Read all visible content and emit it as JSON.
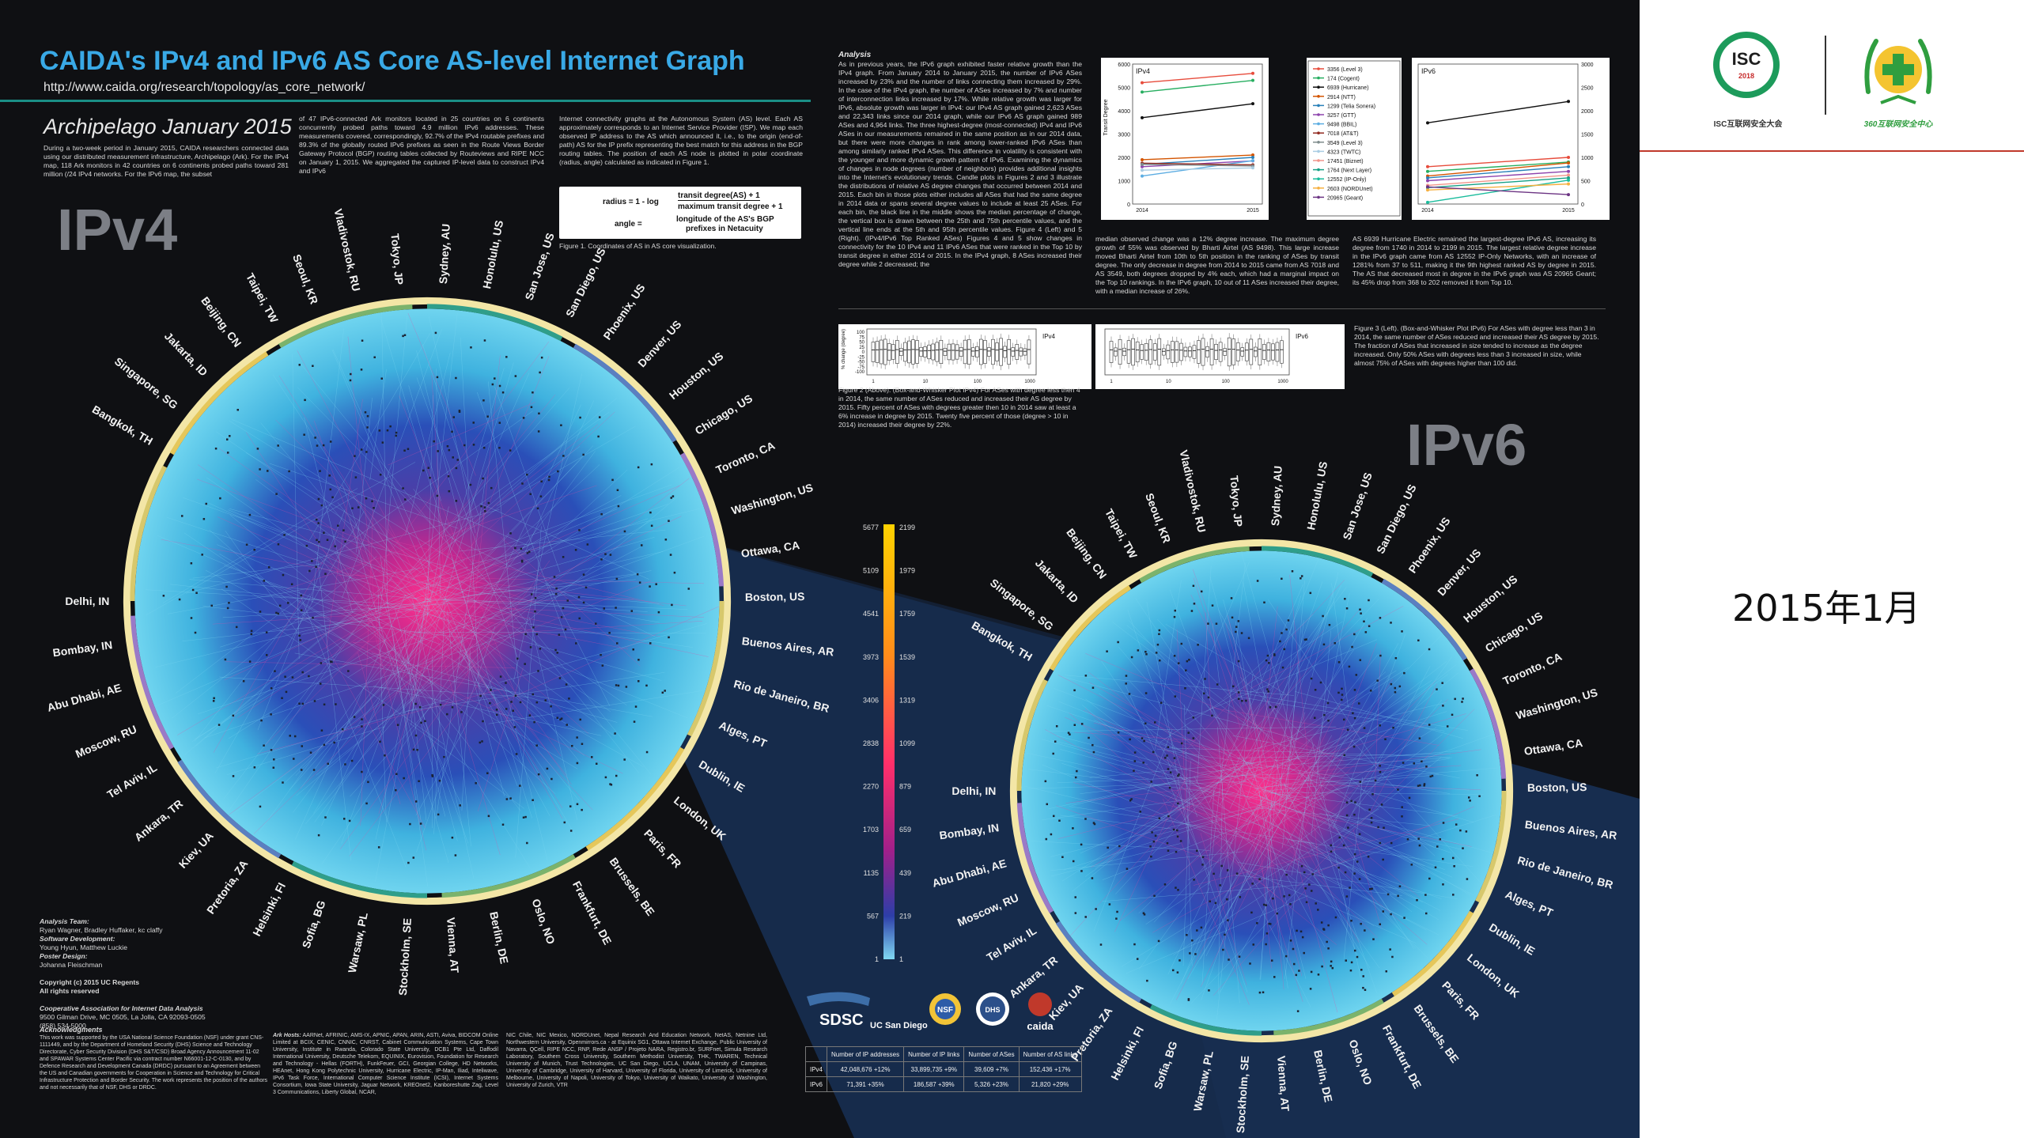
{
  "poster": {
    "title": "CAIDA's IPv4 and IPv6 AS Core AS-level Internet Graph",
    "url": "http://www.caida.org/research/topology/as_core_network/",
    "subtitle": "Archipelago January 2015",
    "intro_text": "During a two-week period in January 2015, CAIDA researchers connected data using our distributed measurement infrastructure, Archipelago (Ark). For the IPv4 map, 118 Ark monitors in 42 countries on 6 continents probed paths toward 281 million (/24 IPv4 networks. For the IPv6 map, the subset",
    "col2_text": "of 47 IPv6-connected Ark monitors located in 25 countries on 6 continents concurrently probed paths toward 4.9 million IPv6 addresses. These measurements covered, correspondingly, 92.7% of the IPv4 routable prefixes and 89.3% of the globally routed IPv6 prefixes as seen in the Route Views Border Gateway Protocol (BGP) routing tables collected by Routeviews and RIPE NCC on January 1, 2015. We aggregated the captured IP-level data to construct IPv4 and IPv6",
    "col3_text": "Internet connectivity graphs at the Autonomous System (AS) level. Each AS approximately corresponds to an Internet Service Provider (ISP). We map each observed IP address to the AS which announced it, i.e., to the origin (end-of-path) AS for the IP prefix representing the best match for this address in the BGP routing tables. The position of each AS node is plotted in polar coordinate (radius, angle) calculated as indicated in Figure 1.",
    "analysis_heading": "Analysis",
    "analysis_text": "As in previous years, the IPv6 graph exhibited faster relative growth than the IPv4 graph. From January 2014 to January 2015, the number of IPv6 ASes increased by 23% and the number of links connecting them increased by 29%. In the case of the IPv4 graph, the number of ASes increased by 7% and number of interconnection links increased by 17%. While relative growth was larger for IPv6, absolute growth was larger in IPv4: our IPv4 AS graph gained 2,623 ASes and 22,343 links since our 2014 graph, while our IPv6 AS graph gained 989 ASes and 4,964 links. The three highest-degree (most-connected) IPv4 and IPv6 ASes in our measurements remained in the same position as in our 2014 data, but there were more changes in rank among lower-ranked IPv6 ASes than among similarly ranked IPv4 ASes. This difference in volatility is consistent with the younger and more dynamic growth pattern of IPv6. Examining the dynamics of changes in node degrees (number of neighbors) provides additional insights into the Internet's evolutionary trends. Candle plots in Figures 2 and 3 illustrate the distributions of relative AS degree changes that occurred between 2014 and 2015. Each bin in those plots either includes all ASes that had the same degree in 2014 data or spans several degree values to include at least 25 ASes. For each bin, the black line in the middle shows the median percentage of change, the vertical box is drawn between the 25th and 75th percentile values, and the vertical line ends at the 5th and 95th percentile values. Figure 4 (Left) and 5 (Right). (IPv4/IPv6 Top Ranked ASes) Figures 4 and 5 show changes in connectivity for the 10 IPv4 and 11 IPv6 ASes that were ranked in the Top 10 by transit degree in either 2014 or 2015. In the IPv4 graph, 8 ASes increased their degree while 2 decreased; the",
    "col_mid_text": "median observed change was a 12% degree increase. The maximum degree growth of 55% was observed by Bharti Airtel (AS 9498). This large increase moved Bharti Airtel from 10th to 5th position in the ranking of ASes by transit degree. The only decrease in degree from 2014 to 2015 came from AS 7018 and AS 3549, both degrees dropped by 4% each, which had a marginal impact on the Top 10 rankings. In the IPv6 graph, 10 out of 11 ASes increased their degree, with a median increase of 26%.",
    "col_right_text": "AS 6939 Hurricane Electric remained the largest-degree IPv6 AS, increasing its degree from 1740 in 2014 to 2199 in 2015. The largest relative degree increase in the IPv6 graph came from AS 12552 IP-Only Networks, with an increase of 1281% from 37 to 511, making it the 9th highest ranked AS by degree in 2015. The AS that decreased most in degree in the IPv6 graph was AS 20965 Geant; its 45% drop from 368 to 202 removed it from Top 10.",
    "fig1_caption": "Figure 1. Coordinates of AS in AS core visualization.",
    "fig2_caption": "Figure 2 (Above). (Box-and-Whisker Plot IPv4) For ASes with degree less then 4 in 2014, the same number of ASes reduced and increased their AS degree by 2015. Fifty percent of ASes with degrees greater then 10 in 2014 saw at least a 6% increase in degree by 2015. Twenty five percent of those (degree > 10 in 2014) increased their degree by 22%.",
    "fig3_caption": "Figure 3 (Left). (Box-and-Whisker Plot IPv6) For ASes with degree less than 3 in 2014, the same number of ASes reduced and increased their AS degree by 2015. The fraction of ASes that increased in size tended to increase as the degree increased. Only 50% ASes with degrees less than 3 increased in size, while almost 75% of ASes with degrees higher than 100 did.",
    "formula_radius": "radius = 1 - log",
    "formula_num": "transit degree(AS) + 1",
    "formula_den": "maximum transit degree + 1",
    "formula_angle": "angle =",
    "formula_angle_expr1": "longitude of the AS's BGP",
    "formula_angle_expr2": "prefixes in Netacuity",
    "ipv4_label": "IPv4",
    "ipv6_label": "IPv6",
    "analysis_team_heading": "Analysis Team:",
    "analysis_team": "Ryan Wagner, Bradley Huffaker, kc claffy",
    "software_heading": "Software Development:",
    "software_team": "Young Hyun, Matthew Luckie",
    "poster_design_heading": "Poster Design:",
    "poster_design": "Johanna Fleischman",
    "copyright": "Copyright (c) 2015 UC Regents",
    "rights": "All rights reserved",
    "caida_name": "Cooperative Association for Internet Data Analysis",
    "caida_addr": "9500 Gilman Drive, MC 0505, La Jolla, CA 92093-0505",
    "caida_phone": "(858) 534-5000",
    "ack_heading": "Acknowledgments",
    "ack_text": "This work was supported by the USA National Science Foundation (NSF) under grant CNS-1111449, and by the Department of Homeland Security (DHS) Science and Technology Directorate, Cyber Security Division (DHS S&T/CSD) Broad Agency Announcement 11-02 and SPAWAR Systems Center Pacific via contract number N66001-12-C-0130, and by Defence Research and Development Canada (DRDC) pursuant to an Agreement between the US and Canadian governments for Cooperation in Science and Technology for Critical Infrastructure Protection and Border Security. The work represents the position of the authors and not necessarily that of NSF, DHS or DRDC.",
    "ark_hosts_heading": "Ark Hosts:",
    "ark_hosts_text": "AARNet, AFRINIC, AMS-IX, APNIC, APAN, ARIN, ASTI, Aviva, BIDCOM Online Limited at BCIX, CENIC, CNNIC, CNRST, Cabinet Communication Systems, Cape Town University, Institute in Rwanda, Colorado State University, DCB1 Pte Ltd, Daffodil International University, Deutsche Telekom, EQUINIX, Eurovision, Foundation for Research and Technology - Hellas (FORTH), FunkFeuer, GCI, Georgian College, HD Networks, HEAnet, Hong Kong Polytechnic University, Hurricane Electric, IP-Man, Iliad, Inteliwave, IPv6 Task Force, International Computer Science Institute (ICSI), Internet Systems Consortium, Iowa State University, Jaguar Network, KREOnet2, Kanboreshutte Zag, Level 3 Communications, Liberty Global, NCAR,",
    "ark_hosts_text2": "NIC Chile, NIC Mexico, NORDUnet, Nepal Research And Education Network, NetAS, Netnine Ltd, Northwestern University, Openmirrors.ca - at Equinix SG1, Ottawa Internet Exchange, Public University of Navarra, QCell, RIPE NCC, RNP, Rede ANSP / Projeto NARA, Registro.br, SURFnet, Simula Research Laboratory, Southern Cross University, Southern Methodist University, THK, TWAREN, Technical University of Munich, Trust Technologies, UC San Diego, UCLA, UNAM, University of Campinas, University of Cambridge, University of Harvard, University of Florida, University of Limerick, University of Melbourne, University of Napoli, University of Tokyo, University of Waikato, University of Washington, University of Zurich, VTR",
    "ipv4_cities": [
      "Bangkok, TH",
      "Singapore, SG",
      "Jakarta, ID",
      "Beijing, CN",
      "Taipei, TW",
      "Seoul, KR",
      "Vladivostok, RU",
      "Tokyo, JP",
      "Sydney, AU",
      "Honolulu, US",
      "San Jose, US",
      "San Diego, US",
      "Phoenix, US",
      "Denver, US",
      "Houston, US",
      "Chicago, US",
      "Toronto, CA",
      "Washington, US",
      "Ottawa, CA",
      "Boston, US",
      "Buenos Aires, AR",
      "Rio de Janeiro, BR",
      "Alges, PT",
      "Dublin, IE",
      "London, UK",
      "Paris, FR",
      "Brussels, BE",
      "Frankfurt, DE",
      "Oslo, NO",
      "Berlin, DE",
      "Vienna, AT",
      "Stockholm, SE",
      "Warsaw, PL",
      "Sofia, BG",
      "Helsinki, FI",
      "Pretoria, ZA",
      "Kiev, UA",
      "Ankara, TR",
      "Tel Aviv, IL",
      "Moscow, RU",
      "Abu Dhabi, AE",
      "Bombay, IN",
      "Delhi, IN"
    ],
    "ipv6_cities": [
      "Bangkok, TH",
      "Singapore, SG",
      "Jakarta, ID",
      "Beijing, CN",
      "Taipei, TW",
      "Seoul, KR",
      "Vladivostok, RU",
      "Tokyo, JP",
      "Sydney, AU",
      "Honolulu, US",
      "San Jose, US",
      "San Diego, US",
      "Phoenix, US",
      "Denver, US",
      "Houston, US",
      "Chicago, US",
      "Toronto, CA",
      "Washington, US",
      "Ottawa, CA",
      "Boston, US",
      "Buenos Aires, AR",
      "Rio de Janeiro, BR",
      "Alges, PT",
      "Dublin, IE",
      "London, UK",
      "Paris, FR",
      "Brussels, BE",
      "Frankfurt, DE",
      "Oslo, NO",
      "Berlin, DE",
      "Vienna, AT",
      "Stockholm, SE",
      "Warsaw, PL",
      "Sofia, BG",
      "Helsinki, FI",
      "Pretoria, ZA",
      "Kiev, UA",
      "Ankara, TR",
      "Tel Aviv, IL",
      "Moscow, RU",
      "Abu Dhabi, AE",
      "Bombay, IN",
      "Delhi, IN"
    ],
    "colorbar_left": [
      "5677",
      "5109",
      "4541",
      "3973",
      "3406",
      "2838",
      "2270",
      "1703",
      "1135",
      "567",
      "1"
    ],
    "colorbar_right": [
      "2199",
      "1979",
      "1759",
      "1539",
      "1319",
      "1099",
      "879",
      "659",
      "439",
      "219",
      "1"
    ],
    "table": {
      "headers": [
        "",
        "Number of IP addresses",
        "Number of IP links",
        "Number of ASes",
        "Number of AS links"
      ],
      "rows": [
        [
          "IPv4",
          "42,048,676 +12%",
          "33,899,735 +9%",
          "39,609 +7%",
          "152,436 +17%"
        ],
        [
          "IPv6",
          "71,391 +35%",
          "186,587 +39%",
          "5,326 +23%",
          "21,820 +29%"
        ]
      ]
    },
    "logos": [
      "SDSC",
      "UC San Diego",
      "NSF",
      "DHS",
      "caida"
    ]
  },
  "chart_data": [
    {
      "type": "line",
      "title": "IPv4",
      "ylabel": "Transit Degree",
      "x": [
        "2014",
        "2015"
      ],
      "ylim": [
        0,
        6000
      ],
      "yticks": [
        "0",
        "1000",
        "2000",
        "3000",
        "4000",
        "5000",
        "6000"
      ],
      "series": [
        {
          "name": "3356 (Level 3)",
          "values": [
            5200,
            5600
          ],
          "color": "#e74c3c"
        },
        {
          "name": "174 (Cogent)",
          "values": [
            4800,
            5300
          ],
          "color": "#27ae60"
        },
        {
          "name": "6939 (Hurricane)",
          "values": [
            3700,
            4300
          ],
          "color": "#111111"
        },
        {
          "name": "2914 (NTT)",
          "values": [
            1900,
            2100
          ],
          "color": "#d35400"
        },
        {
          "name": "1299 (Telia Sonera)",
          "values": [
            1700,
            2000
          ],
          "color": "#2980b9"
        },
        {
          "name": "3257 (GTT)",
          "values": [
            1600,
            1850
          ],
          "color": "#8e44ad"
        },
        {
          "name": "9498 (BBIL)",
          "values": [
            1200,
            1860
          ],
          "color": "#5dade2"
        },
        {
          "name": "7018 (AT&T)",
          "values": [
            1750,
            1680
          ],
          "color": "#922b21"
        },
        {
          "name": "3549 (Level 3)",
          "values": [
            1700,
            1630
          ],
          "color": "#7f8c8d"
        },
        {
          "name": "4323 (TWTC)",
          "values": [
            1450,
            1550
          ],
          "color": "#a9cce3"
        }
      ]
    },
    {
      "type": "line",
      "title": "IPv6",
      "x": [
        "2014",
        "2015"
      ],
      "ylim": [
        0,
        3000
      ],
      "yticks": [
        "0",
        "500",
        "1000",
        "1500",
        "2000",
        "2500",
        "3000"
      ],
      "series": [
        {
          "name": "6939 (Hurricane)",
          "values": [
            1740,
            2199
          ],
          "color": "#111111"
        },
        {
          "name": "3356 (Level 3)",
          "values": [
            800,
            1000
          ],
          "color": "#e74c3c"
        },
        {
          "name": "174 (Cogent)",
          "values": [
            700,
            900
          ],
          "color": "#27ae60"
        },
        {
          "name": "2914 (NTT)",
          "values": [
            600,
            880
          ],
          "color": "#d35400"
        },
        {
          "name": "1299 (Telia Sonera)",
          "values": [
            560,
            800
          ],
          "color": "#2980b9"
        },
        {
          "name": "17451 (Biznet)",
          "values": [
            400,
            620
          ],
          "color": "#f1948a"
        },
        {
          "name": "1764 (Next Layer)",
          "values": [
            350,
            560
          ],
          "color": "#16a085"
        },
        {
          "name": "3257 (GTT)",
          "values": [
            500,
            700
          ],
          "color": "#8e44ad"
        },
        {
          "name": "12552 (IP-Only)",
          "values": [
            37,
            511
          ],
          "color": "#1abc9c"
        },
        {
          "name": "2603 (NORDUnet)",
          "values": [
            300,
            430
          ],
          "color": "#f5b041"
        },
        {
          "name": "20965 (Geant)",
          "values": [
            368,
            202
          ],
          "color": "#6c3483"
        }
      ]
    },
    {
      "type": "other",
      "title": "IPv4",
      "ylabel": "% change (degree)",
      "xticks": [
        "1",
        "10",
        "100",
        "1000"
      ],
      "yticks": [
        "100",
        "75",
        "50",
        "25",
        "0",
        "-25",
        "-50",
        "-75",
        "-100"
      ]
    },
    {
      "type": "other",
      "title": "IPv6",
      "xticks": [
        "1",
        "10",
        "100",
        "1000"
      ],
      "yticks": [
        "150",
        "100",
        "50",
        "0",
        "-50",
        "-100"
      ]
    }
  ],
  "side": {
    "isc_logo_text": "ISC",
    "isc_logo_year": "2018",
    "isc_caption": "ISC互联网安全大会",
    "caption_360": "360互联网安全中心",
    "date_label": "2015年1月",
    "brand_green": "#1d9b5b",
    "brand_red": "#c0392b"
  }
}
